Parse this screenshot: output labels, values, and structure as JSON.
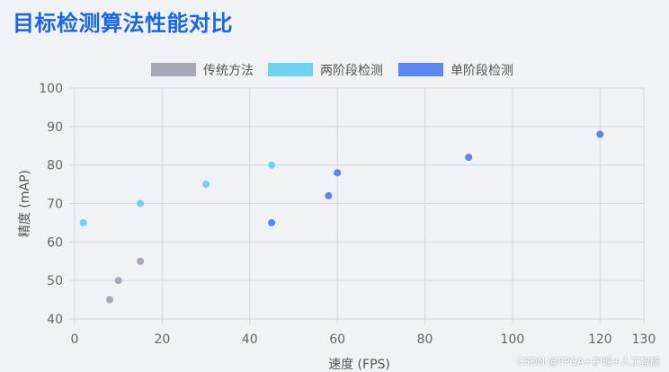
{
  "page_title": "目标检测算法性能对比",
  "watermark": "CSDN @FPGA+护理+人工智能",
  "chart_data": {
    "type": "scatter",
    "title": "目标检测算法性能对比",
    "xlabel": "速度 (FPS)",
    "ylabel": "精度 (mAP)",
    "xlim": [
      0,
      130
    ],
    "ylim": [
      40,
      100
    ],
    "x_ticks": [
      0,
      20,
      40,
      60,
      80,
      100,
      120,
      130
    ],
    "y_ticks": [
      40,
      50,
      60,
      70,
      80,
      90,
      100
    ],
    "grid": true,
    "legend_position": "top-center",
    "series": [
      {
        "name": "传统方法",
        "color": "#a4a9b3",
        "points": [
          {
            "x": 8,
            "y": 45
          },
          {
            "x": 10,
            "y": 50
          },
          {
            "x": 15,
            "y": 55
          }
        ]
      },
      {
        "name": "两阶段检测",
        "color": "#6ed4ee",
        "points": [
          {
            "x": 2,
            "y": 65
          },
          {
            "x": 15,
            "y": 70
          },
          {
            "x": 30,
            "y": 75
          },
          {
            "x": 45,
            "y": 80
          }
        ]
      },
      {
        "name": "单阶段检测",
        "color": "#5b86f2",
        "points": [
          {
            "x": 45,
            "y": 65
          },
          {
            "x": 58,
            "y": 72
          },
          {
            "x": 60,
            "y": 78
          },
          {
            "x": 90,
            "y": 82
          },
          {
            "x": 120,
            "y": 88
          }
        ]
      }
    ]
  }
}
